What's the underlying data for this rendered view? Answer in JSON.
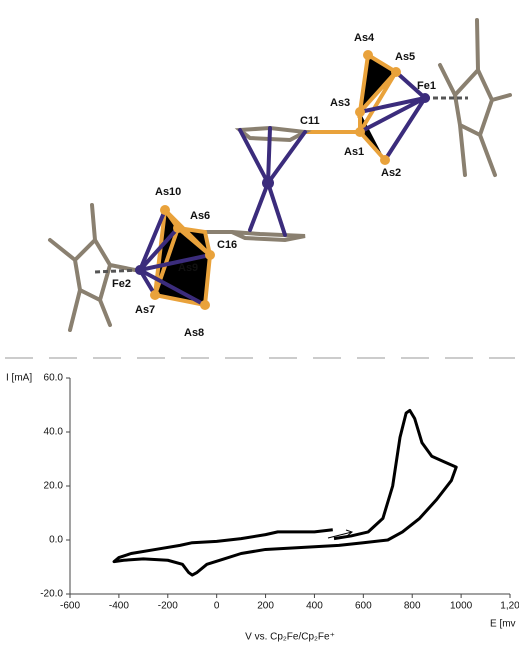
{
  "molecule": {
    "labels": [
      "As4",
      "As5",
      "Fe1",
      "As3",
      "C11",
      "As1",
      "As2",
      "As10",
      "As6",
      "C16",
      "As9",
      "Fe2",
      "As7",
      "As8"
    ]
  },
  "chart_data": {
    "type": "line",
    "y_label": "I [mA]",
    "x_label": "E [mv",
    "x_sublabel": "V vs. Cp₂Fe/Cp₂Fe⁺",
    "x": [
      480,
      550,
      620,
      680,
      720,
      750,
      775,
      790,
      810,
      840,
      880,
      930,
      980,
      960,
      900,
      830,
      760,
      700,
      600,
      500,
      400,
      300,
      200,
      100,
      30,
      -40,
      -80,
      -100,
      -115,
      -140,
      -200,
      -300,
      -380,
      -420,
      -400,
      -350,
      -250,
      -150,
      -100,
      0,
      100,
      200,
      250,
      300,
      400,
      475
    ],
    "series": [
      {
        "color": "#000000",
        "values": [
          0.5,
          1.5,
          3,
          8,
          20,
          38,
          47,
          48,
          45,
          36,
          31,
          29,
          27,
          22,
          15,
          8,
          3,
          0,
          -1,
          -2,
          -2.5,
          -3,
          -3.5,
          -5,
          -7,
          -9,
          -12,
          -13,
          -12,
          -9,
          -7.5,
          -7,
          -7.5,
          -8,
          -6.5,
          -5,
          -3.5,
          -2,
          -1,
          -0.5,
          0.5,
          2,
          3,
          3,
          3,
          3.8
        ]
      }
    ],
    "xlim": [
      -600,
      1200
    ],
    "ylim": [
      -20,
      60
    ],
    "xticks": [
      -600,
      -400,
      -200,
      0,
      200,
      400,
      600,
      800,
      1000,
      {
        "value": 1200,
        "label": "1,20"
      }
    ],
    "yticks": [
      {
        "value": -20,
        "label": "-20.0"
      },
      {
        "value": 0,
        "label": "0.0"
      },
      {
        "value": 20,
        "label": "20.0"
      },
      {
        "value": 40,
        "label": "40.0"
      },
      {
        "value": 60,
        "label": "60.0"
      }
    ]
  }
}
